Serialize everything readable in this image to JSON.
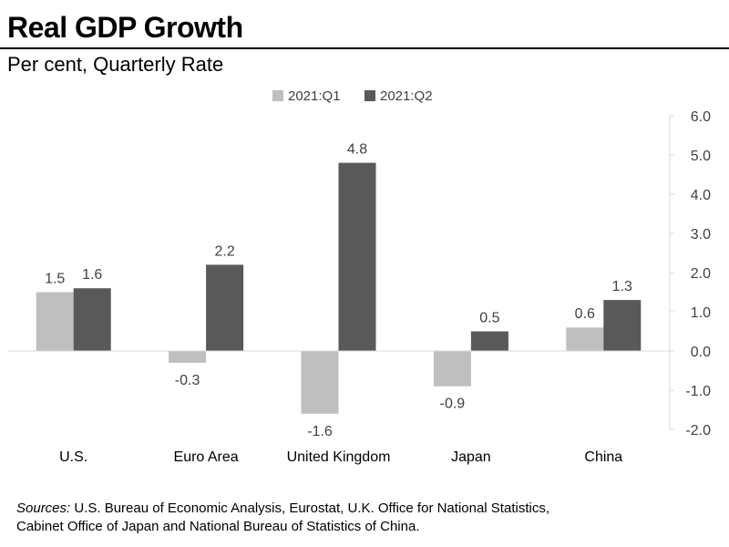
{
  "header": {
    "title": "Real GDP Growth",
    "subtitle": "Per cent, Quarterly Rate"
  },
  "footer": {
    "sources_label": "Sources:",
    "sources_line1": "U.S. Bureau of Economic Analysis, Eurostat, U.K. Office for National Statistics,",
    "sources_line2": "Cabinet Office of Japan and National Bureau of Statistics of China."
  },
  "colors": {
    "q1": "#bfbfbf",
    "q2": "#595959",
    "axis": "#d9d9d9",
    "text": "#404040"
  },
  "chart_data": {
    "type": "bar",
    "title": "Real GDP Growth",
    "subtitle": "Per cent, Quarterly Rate",
    "categories": [
      "U.S.",
      "Euro Area",
      "United Kingdom",
      "Japan",
      "China"
    ],
    "series": [
      {
        "name": "2021:Q1",
        "values": [
          1.5,
          -0.3,
          -1.6,
          -0.9,
          0.6
        ],
        "labels": [
          "1.5",
          "-0.3",
          "-1.6",
          "-0.9",
          "0.6"
        ]
      },
      {
        "name": "2021:Q2",
        "values": [
          1.6,
          2.2,
          4.8,
          0.5,
          1.3
        ],
        "labels": [
          "1.6",
          "2.2",
          "4.8",
          "0.5",
          "1.3"
        ]
      }
    ],
    "ylim": [
      -2.0,
      6.0
    ],
    "yticks": [
      6.0,
      5.0,
      4.0,
      3.0,
      2.0,
      1.0,
      0.0,
      -1.0,
      -2.0
    ],
    "ytick_labels": [
      "6.0",
      "5.0",
      "4.0",
      "3.0",
      "2.0",
      "1.0",
      "0.0",
      "-1.0",
      "-2.0"
    ],
    "yaxis_side": "right",
    "legend_position": "top-center",
    "grid": false
  }
}
